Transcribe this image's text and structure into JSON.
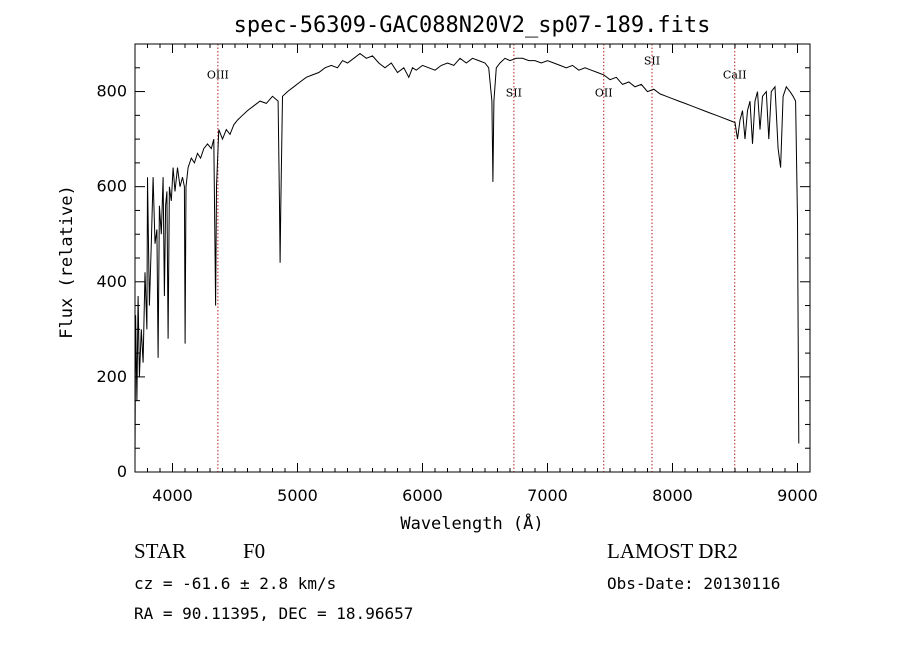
{
  "chart_data": {
    "type": "line",
    "title": "spec-56309-GAC088N20V2_sp07-189.fits",
    "xlabel": "Wavelength (Å)",
    "ylabel": "Flux (relative)",
    "xlim": [
      3700,
      9100
    ],
    "ylim": [
      0,
      900
    ],
    "xticks": [
      4000,
      5000,
      6000,
      7000,
      8000,
      9000
    ],
    "yticks": [
      0,
      200,
      400,
      600,
      800
    ],
    "grid": false,
    "line_color": "#000000",
    "marker_color": "#b22222",
    "line_markers": [
      {
        "label": "OIII",
        "x": 4363,
        "label_y": 827
      },
      {
        "label": "SII",
        "x": 6731,
        "label_y": 790
      },
      {
        "label": "OII",
        "x": 7450,
        "label_y": 790
      },
      {
        "label": "SII",
        "x": 7836,
        "label_y": 857
      },
      {
        "label": "CaII",
        "x": 8498,
        "label_y": 827
      }
    ],
    "series": [
      {
        "points": [
          [
            3700,
            20
          ],
          [
            3705,
            330
          ],
          [
            3715,
            150
          ],
          [
            3725,
            370
          ],
          [
            3735,
            200
          ],
          [
            3750,
            300
          ],
          [
            3765,
            230
          ],
          [
            3780,
            420
          ],
          [
            3795,
            300
          ],
          [
            3800,
            620
          ],
          [
            3815,
            350
          ],
          [
            3830,
            480
          ],
          [
            3845,
            620
          ],
          [
            3860,
            480
          ],
          [
            3875,
            510
          ],
          [
            3885,
            240
          ],
          [
            3895,
            560
          ],
          [
            3910,
            500
          ],
          [
            3925,
            620
          ],
          [
            3935,
            370
          ],
          [
            3945,
            560
          ],
          [
            3955,
            590
          ],
          [
            3965,
            280
          ],
          [
            3975,
            600
          ],
          [
            3990,
            570
          ],
          [
            4005,
            640
          ],
          [
            4020,
            590
          ],
          [
            4040,
            640
          ],
          [
            4060,
            600
          ],
          [
            4080,
            620
          ],
          [
            4095,
            600
          ],
          [
            4101,
            270
          ],
          [
            4108,
            600
          ],
          [
            4125,
            640
          ],
          [
            4150,
            660
          ],
          [
            4175,
            650
          ],
          [
            4200,
            670
          ],
          [
            4225,
            660
          ],
          [
            4250,
            680
          ],
          [
            4280,
            690
          ],
          [
            4310,
            680
          ],
          [
            4330,
            700
          ],
          [
            4340,
            470
          ],
          [
            4345,
            350
          ],
          [
            4352,
            600
          ],
          [
            4370,
            720
          ],
          [
            4400,
            700
          ],
          [
            4430,
            720
          ],
          [
            4460,
            710
          ],
          [
            4490,
            730
          ],
          [
            4520,
            740
          ],
          [
            4560,
            750
          ],
          [
            4600,
            760
          ],
          [
            4650,
            770
          ],
          [
            4700,
            780
          ],
          [
            4750,
            775
          ],
          [
            4800,
            790
          ],
          [
            4845,
            780
          ],
          [
            4856,
            560
          ],
          [
            4861,
            440
          ],
          [
            4866,
            560
          ],
          [
            4880,
            790
          ],
          [
            4920,
            800
          ],
          [
            4970,
            810
          ],
          [
            5020,
            820
          ],
          [
            5070,
            830
          ],
          [
            5120,
            835
          ],
          [
            5170,
            840
          ],
          [
            5220,
            850
          ],
          [
            5270,
            855
          ],
          [
            5320,
            850
          ],
          [
            5360,
            865
          ],
          [
            5400,
            860
          ],
          [
            5450,
            870
          ],
          [
            5500,
            880
          ],
          [
            5550,
            870
          ],
          [
            5600,
            875
          ],
          [
            5650,
            860
          ],
          [
            5700,
            850
          ],
          [
            5750,
            860
          ],
          [
            5800,
            840
          ],
          [
            5850,
            850
          ],
          [
            5890,
            830
          ],
          [
            5920,
            850
          ],
          [
            5950,
            845
          ],
          [
            6000,
            855
          ],
          [
            6050,
            850
          ],
          [
            6100,
            845
          ],
          [
            6150,
            855
          ],
          [
            6200,
            860
          ],
          [
            6250,
            855
          ],
          [
            6300,
            870
          ],
          [
            6350,
            860
          ],
          [
            6400,
            870
          ],
          [
            6450,
            865
          ],
          [
            6500,
            860
          ],
          [
            6530,
            850
          ],
          [
            6555,
            780
          ],
          [
            6563,
            610
          ],
          [
            6571,
            780
          ],
          [
            6590,
            850
          ],
          [
            6620,
            860
          ],
          [
            6660,
            870
          ],
          [
            6700,
            865
          ],
          [
            6750,
            870
          ],
          [
            6800,
            870
          ],
          [
            6850,
            865
          ],
          [
            6900,
            865
          ],
          [
            6950,
            860
          ],
          [
            7000,
            865
          ],
          [
            7050,
            860
          ],
          [
            7100,
            855
          ],
          [
            7150,
            850
          ],
          [
            7200,
            855
          ],
          [
            7250,
            845
          ],
          [
            7300,
            850
          ],
          [
            7350,
            845
          ],
          [
            7400,
            840
          ],
          [
            7450,
            835
          ],
          [
            7500,
            825
          ],
          [
            7550,
            830
          ],
          [
            7600,
            815
          ],
          [
            7650,
            820
          ],
          [
            7700,
            810
          ],
          [
            7750,
            815
          ],
          [
            7800,
            800
          ],
          [
            7850,
            805
          ],
          [
            7900,
            795
          ],
          [
            7950,
            790
          ],
          [
            8000,
            785
          ],
          [
            8050,
            780
          ],
          [
            8100,
            775
          ],
          [
            8150,
            770
          ],
          [
            8200,
            765
          ],
          [
            8250,
            760
          ],
          [
            8300,
            755
          ],
          [
            8350,
            750
          ],
          [
            8400,
            745
          ],
          [
            8450,
            740
          ],
          [
            8500,
            735
          ],
          [
            8520,
            700
          ],
          [
            8540,
            740
          ],
          [
            8560,
            760
          ],
          [
            8580,
            700
          ],
          [
            8600,
            760
          ],
          [
            8620,
            780
          ],
          [
            8640,
            690
          ],
          [
            8660,
            780
          ],
          [
            8680,
            800
          ],
          [
            8700,
            720
          ],
          [
            8720,
            790
          ],
          [
            8750,
            800
          ],
          [
            8770,
            700
          ],
          [
            8790,
            800
          ],
          [
            8820,
            810
          ],
          [
            8845,
            680
          ],
          [
            8865,
            640
          ],
          [
            8885,
            790
          ],
          [
            8910,
            810
          ],
          [
            8940,
            800
          ],
          [
            8965,
            790
          ],
          [
            8985,
            780
          ],
          [
            9000,
            530
          ],
          [
            9010,
            60
          ]
        ]
      }
    ]
  },
  "info": {
    "object_class": "STAR",
    "subclass": "F0",
    "survey": "LAMOST DR2",
    "redshift": "cz = -61.6 ± 2.8 km/s",
    "obs_date": "Obs-Date: 20130116",
    "coords": "RA =  90.11395, DEC =  18.96657"
  }
}
